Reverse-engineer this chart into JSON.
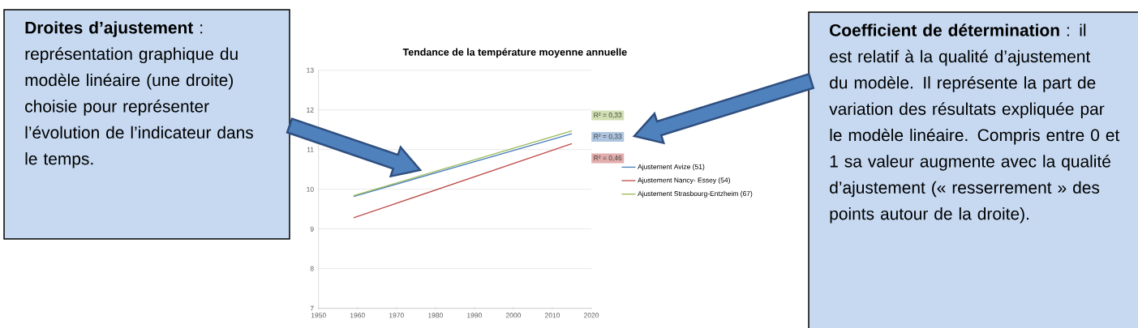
{
  "chart_data": {
    "type": "line",
    "title": "Tendance de la température moyenne annuelle",
    "x": [
      1959,
      2015
    ],
    "series": [
      {
        "name": "Ajustement Avize (51)",
        "color": "#4a7ebb",
        "values": [
          9.82,
          11.4
        ]
      },
      {
        "name": "Ajustement Nancy- Essey (54)",
        "color": "#be4b48",
        "values": [
          9.28,
          11.15
        ]
      },
      {
        "name": "Ajustement Strasbourg-Entzheim (67)",
        "color": "#98b954",
        "values": [
          9.84,
          11.47
        ]
      }
    ],
    "xlim": [
      1950,
      2020
    ],
    "xticks": [
      1950,
      1960,
      1970,
      1980,
      1990,
      2000,
      2010,
      2020
    ],
    "ylim": [
      7,
      13
    ],
    "yticks": [
      7,
      8,
      9,
      10,
      11,
      12,
      13
    ],
    "grid": "y",
    "legend": "right",
    "annotations": [
      "**Droites d’ajustement** : représentation graphique du modèle linéaire (une droite) choisie pour représenter l’évolution de l’indicateur dans le temps.",
      "**Coefficient de détermination** : il est  relatif à la qualité d’ajustement du modèle. Il représente la part de variation des résultats expliquée par le modèle linéaire. Compris entre 0 et 1 sa valeur augmente avec la qualité d’ajustement (« resserrement » des points autour de la droite).",
      "R² = 0,33",
      "R² = 0,33",
      "R² = 0,46"
    ]
  }
}
